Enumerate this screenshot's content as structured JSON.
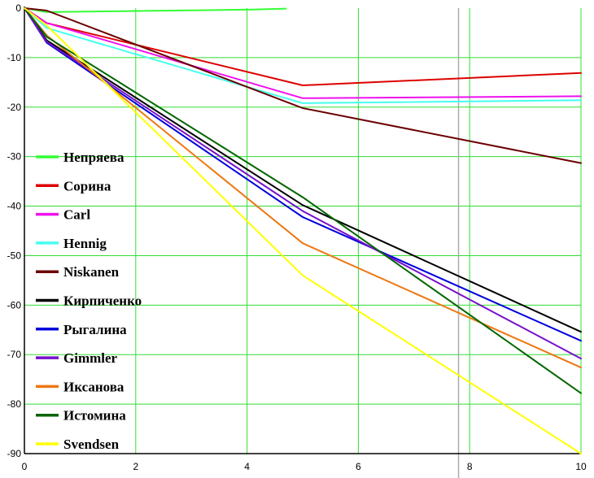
{
  "chart_data": {
    "type": "line",
    "title": "",
    "xlabel": "",
    "ylabel": "",
    "xlim": [
      0,
      10
    ],
    "ylim": [
      -90,
      0
    ],
    "grid": true,
    "legend_position": "left",
    "x_ticks": [
      "0",
      "2",
      "4",
      "6",
      "8",
      "10"
    ],
    "y_ticks": [
      "0",
      "-10",
      "-20",
      "-30",
      "-40",
      "-50",
      "-60",
      "-70",
      "-80",
      "-90"
    ],
    "highlight_x": 7.8,
    "series": [
      {
        "name": "Непряева",
        "color": "#33ff33",
        "x": [
          0,
          0.4,
          4.1,
          4.7
        ],
        "y": [
          0,
          -0.8,
          -0.3,
          -0.1
        ]
      },
      {
        "name": "Сорина",
        "color": "#dd0000",
        "x": [
          0,
          0.4,
          5,
          10
        ],
        "y": [
          0,
          -3,
          -15.6,
          -13.1
        ]
      },
      {
        "name": "Carl",
        "color": "#ee11ee",
        "x": [
          0,
          0.4,
          5,
          10
        ],
        "y": [
          0,
          -3,
          -18.2,
          -17.8
        ]
      },
      {
        "name": "Hennig",
        "color": "#44ffee",
        "x": [
          0,
          0.4,
          5,
          10
        ],
        "y": [
          0,
          -4,
          -19.2,
          -18.6
        ]
      },
      {
        "name": "Niskanen",
        "color": "#6b0000",
        "x": [
          0,
          0.4,
          5,
          10
        ],
        "y": [
          0,
          -0.5,
          -20.2,
          -31.3
        ]
      },
      {
        "name": "Кирпиченко",
        "color": "#000000",
        "x": [
          0,
          0.4,
          5,
          10
        ],
        "y": [
          0,
          -6.5,
          -39.8,
          -65.4
        ]
      },
      {
        "name": "Рыгалина",
        "color": "#0000dd",
        "x": [
          0,
          0.4,
          5,
          10
        ],
        "y": [
          0,
          -7,
          -42.2,
          -67.2
        ]
      },
      {
        "name": "Gimmler",
        "color": "#7711cc",
        "x": [
          0,
          0.4,
          5,
          10
        ],
        "y": [
          0,
          -6.8,
          -41,
          -70.8
        ]
      },
      {
        "name": "Иксанова",
        "color": "#ee7711",
        "x": [
          0,
          0.4,
          5,
          10
        ],
        "y": [
          0,
          -5.5,
          -47.5,
          -72.6
        ]
      },
      {
        "name": "Истомина",
        "color": "#006600",
        "x": [
          0,
          0.4,
          5,
          10
        ],
        "y": [
          0,
          -5.8,
          -38.2,
          -77.8
        ]
      },
      {
        "name": "Svendsen",
        "color": "#ffff00",
        "x": [
          0,
          0.4,
          5,
          10
        ],
        "y": [
          0,
          -3.5,
          -54,
          -90
        ]
      }
    ]
  }
}
